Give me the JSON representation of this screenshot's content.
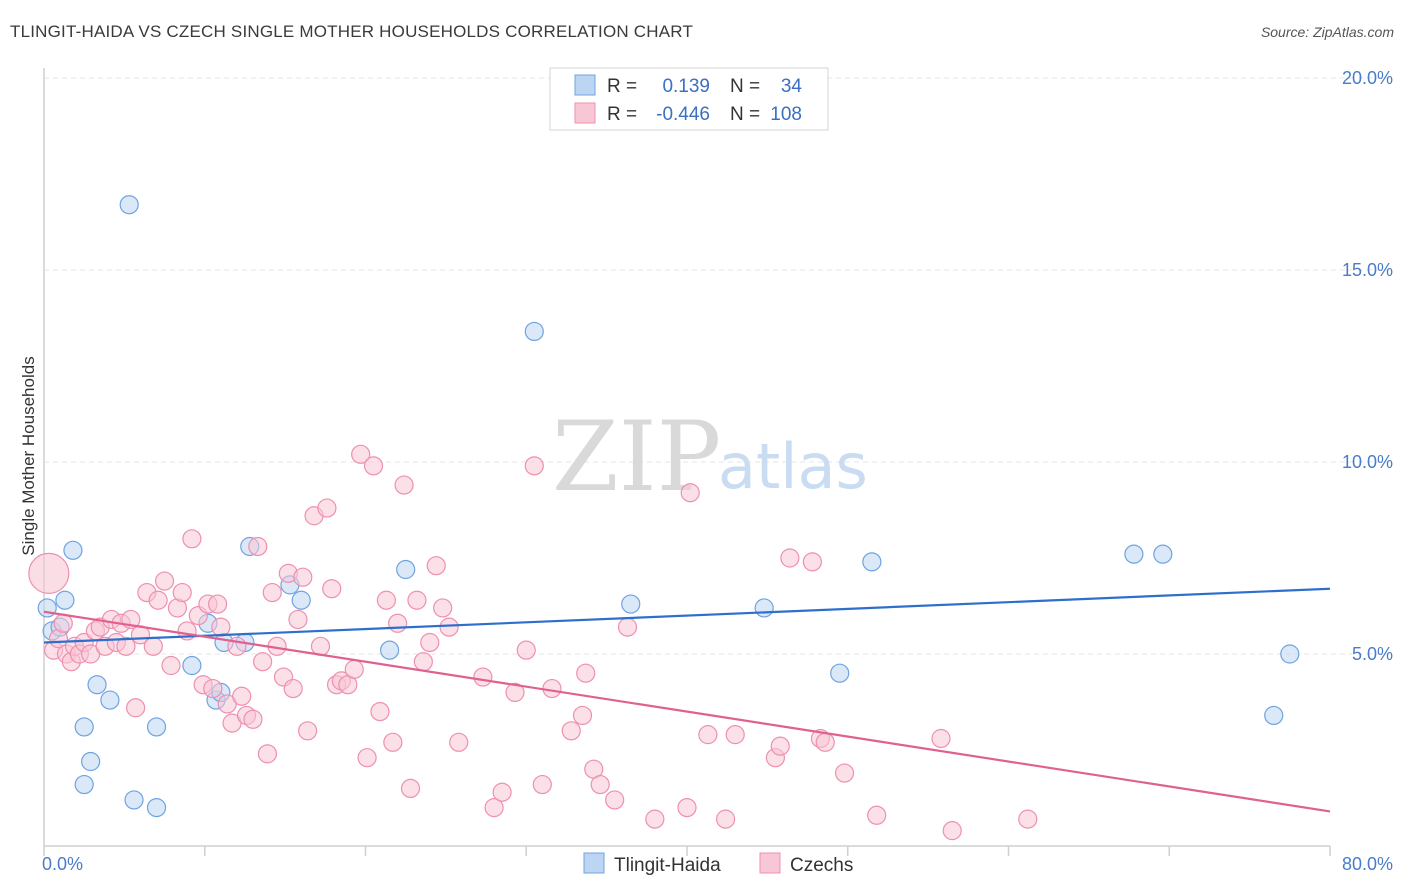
{
  "title": "TLINGIT-HAIDA VS CZECH SINGLE MOTHER HOUSEHOLDS CORRELATION CHART",
  "source": "Source: ZipAtlas.com",
  "watermark": {
    "zip": "ZIP",
    "atlas": "atlas"
  },
  "legend": {
    "rows": [
      {
        "r_label": "R =",
        "r_value": "0.139",
        "n_label": "N =",
        "n_value": "34",
        "color": "#9ec3ec"
      },
      {
        "r_label": "R =",
        "r_value": "-0.446",
        "n_label": "N =",
        "n_value": "108",
        "color": "#f4afc4"
      }
    ]
  },
  "bottom_legend": [
    {
      "label": "Tlingit-Haida",
      "color": "#9ec3ec"
    },
    {
      "label": "Czechs",
      "color": "#f4afc4"
    }
  ],
  "chart_data": {
    "type": "scatter",
    "ylabel": "Single Mother Households",
    "xlim": [
      0,
      80
    ],
    "ylim": [
      0,
      20
    ],
    "x_tick_labels": [
      {
        "value": 0,
        "label": "0.0%"
      },
      {
        "value": 80,
        "label": "80.0%"
      }
    ],
    "y_tick_labels": [
      {
        "value": 5,
        "label": "5.0%"
      },
      {
        "value": 10,
        "label": "10.0%"
      },
      {
        "value": 15,
        "label": "15.0%"
      },
      {
        "value": 20,
        "label": "20.0%"
      }
    ],
    "series": [
      {
        "name": "Tlingit-Haida",
        "color": "#6fa3e0",
        "fill": "#bcd5f3",
        "trend": {
          "x0": 0,
          "y0": 5.3,
          "x1": 80,
          "y1": 6.7,
          "color": "#2f6fcc"
        },
        "points": [
          [
            0.2,
            6.2
          ],
          [
            0.5,
            5.6
          ],
          [
            1.0,
            5.7
          ],
          [
            1.3,
            6.4
          ],
          [
            1.8,
            7.7
          ],
          [
            3.3,
            4.2
          ],
          [
            4.1,
            3.8
          ],
          [
            2.5,
            3.1
          ],
          [
            2.9,
            2.2
          ],
          [
            2.5,
            1.6
          ],
          [
            5.3,
            16.7
          ],
          [
            5.6,
            1.2
          ],
          [
            7.0,
            3.1
          ],
          [
            7.0,
            1.0
          ],
          [
            9.2,
            4.7
          ],
          [
            10.2,
            5.8
          ],
          [
            10.7,
            3.8
          ],
          [
            11.0,
            4.0
          ],
          [
            11.2,
            5.3
          ],
          [
            12.5,
            5.3
          ],
          [
            12.8,
            7.8
          ],
          [
            15.3,
            6.8
          ],
          [
            16.0,
            6.4
          ],
          [
            21.5,
            5.1
          ],
          [
            22.5,
            7.2
          ],
          [
            30.5,
            13.4
          ],
          [
            36.5,
            6.3
          ],
          [
            44.8,
            6.2
          ],
          [
            49.5,
            4.5
          ],
          [
            51.5,
            7.4
          ],
          [
            67.8,
            7.6
          ],
          [
            69.6,
            7.6
          ],
          [
            76.5,
            3.4
          ],
          [
            77.5,
            5.0
          ]
        ]
      },
      {
        "name": "Czechs",
        "color": "#ef8fb0",
        "fill": "#f8c7d6",
        "trend": {
          "x0": 0,
          "y0": 6.1,
          "x1": 80,
          "y1": 0.9,
          "color": "#e06090"
        },
        "points": [
          [
            0.3,
            7.1
          ],
          [
            0.6,
            5.1
          ],
          [
            0.9,
            5.4
          ],
          [
            1.2,
            5.8
          ],
          [
            1.4,
            5.0
          ],
          [
            1.7,
            4.8
          ],
          [
            1.9,
            5.2
          ],
          [
            2.2,
            5.0
          ],
          [
            2.5,
            5.3
          ],
          [
            2.9,
            5.0
          ],
          [
            3.2,
            5.6
          ],
          [
            3.5,
            5.7
          ],
          [
            3.8,
            5.2
          ],
          [
            4.2,
            5.9
          ],
          [
            4.5,
            5.3
          ],
          [
            4.8,
            5.8
          ],
          [
            5.1,
            5.2
          ],
          [
            5.4,
            5.9
          ],
          [
            5.7,
            3.6
          ],
          [
            6.0,
            5.5
          ],
          [
            6.4,
            6.6
          ],
          [
            6.8,
            5.2
          ],
          [
            7.1,
            6.4
          ],
          [
            7.5,
            6.9
          ],
          [
            7.9,
            4.7
          ],
          [
            8.3,
            6.2
          ],
          [
            8.6,
            6.6
          ],
          [
            8.9,
            5.6
          ],
          [
            9.2,
            8.0
          ],
          [
            9.6,
            6.0
          ],
          [
            9.9,
            4.2
          ],
          [
            10.2,
            6.3
          ],
          [
            10.5,
            4.1
          ],
          [
            10.8,
            6.3
          ],
          [
            11.0,
            5.7
          ],
          [
            11.4,
            3.7
          ],
          [
            11.7,
            3.2
          ],
          [
            12.0,
            5.2
          ],
          [
            12.3,
            3.9
          ],
          [
            12.6,
            3.4
          ],
          [
            13.0,
            3.3
          ],
          [
            13.3,
            7.8
          ],
          [
            13.6,
            4.8
          ],
          [
            13.9,
            2.4
          ],
          [
            14.2,
            6.6
          ],
          [
            14.5,
            5.2
          ],
          [
            14.9,
            4.4
          ],
          [
            15.2,
            7.1
          ],
          [
            15.5,
            4.1
          ],
          [
            15.8,
            5.9
          ],
          [
            16.1,
            7.0
          ],
          [
            16.4,
            3.0
          ],
          [
            16.8,
            8.6
          ],
          [
            17.2,
            5.2
          ],
          [
            17.6,
            8.8
          ],
          [
            17.9,
            6.7
          ],
          [
            18.2,
            4.2
          ],
          [
            18.5,
            4.3
          ],
          [
            18.9,
            4.2
          ],
          [
            19.3,
            4.6
          ],
          [
            19.7,
            10.2
          ],
          [
            20.1,
            2.3
          ],
          [
            20.5,
            9.9
          ],
          [
            20.9,
            3.5
          ],
          [
            21.3,
            6.4
          ],
          [
            21.7,
            2.7
          ],
          [
            22.0,
            5.8
          ],
          [
            22.4,
            9.4
          ],
          [
            22.8,
            1.5
          ],
          [
            23.2,
            6.4
          ],
          [
            23.6,
            4.8
          ],
          [
            24.0,
            5.3
          ],
          [
            24.4,
            7.3
          ],
          [
            24.8,
            6.2
          ],
          [
            25.2,
            5.7
          ],
          [
            25.8,
            2.7
          ],
          [
            27.3,
            4.4
          ],
          [
            28.0,
            1.0
          ],
          [
            28.5,
            1.4
          ],
          [
            29.3,
            4.0
          ],
          [
            30.0,
            5.1
          ],
          [
            30.5,
            9.9
          ],
          [
            31.0,
            1.6
          ],
          [
            31.6,
            4.1
          ],
          [
            32.8,
            3.0
          ],
          [
            33.5,
            3.4
          ],
          [
            33.7,
            4.5
          ],
          [
            34.2,
            2.0
          ],
          [
            34.6,
            1.6
          ],
          [
            35.5,
            1.2
          ],
          [
            36.3,
            5.7
          ],
          [
            38.0,
            0.7
          ],
          [
            40.0,
            1.0
          ],
          [
            40.2,
            9.2
          ],
          [
            41.3,
            2.9
          ],
          [
            42.4,
            0.7
          ],
          [
            43.0,
            2.9
          ],
          [
            45.5,
            2.3
          ],
          [
            45.8,
            2.6
          ],
          [
            46.4,
            7.5
          ],
          [
            47.8,
            7.4
          ],
          [
            48.3,
            2.8
          ],
          [
            48.6,
            2.7
          ],
          [
            49.8,
            1.9
          ],
          [
            51.8,
            0.8
          ],
          [
            55.8,
            2.8
          ],
          [
            56.5,
            0.4
          ],
          [
            61.2,
            0.7
          ]
        ]
      }
    ]
  }
}
